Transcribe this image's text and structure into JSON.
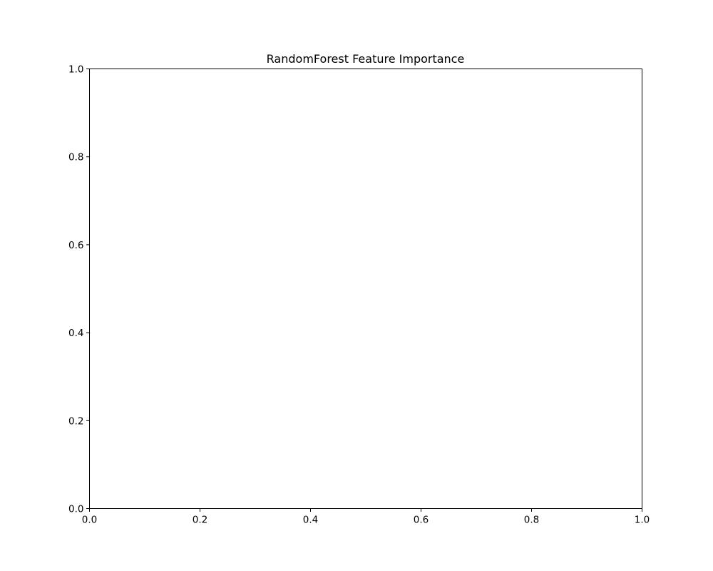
{
  "chart_data": {
    "type": "bar",
    "title": "RandomForest Feature Importance",
    "xlabel": "",
    "ylabel": "",
    "xlim": [
      0.0,
      1.0
    ],
    "ylim": [
      0.0,
      1.0
    ],
    "x_ticks": [
      "0.0",
      "0.2",
      "0.4",
      "0.6",
      "0.8",
      "1.0"
    ],
    "y_ticks": [
      "0.0",
      "0.2",
      "0.4",
      "0.6",
      "0.8",
      "1.0"
    ],
    "categories": [],
    "values": [],
    "grid": false,
    "colors": {
      "axes": "#000000",
      "background": "#ffffff"
    }
  }
}
